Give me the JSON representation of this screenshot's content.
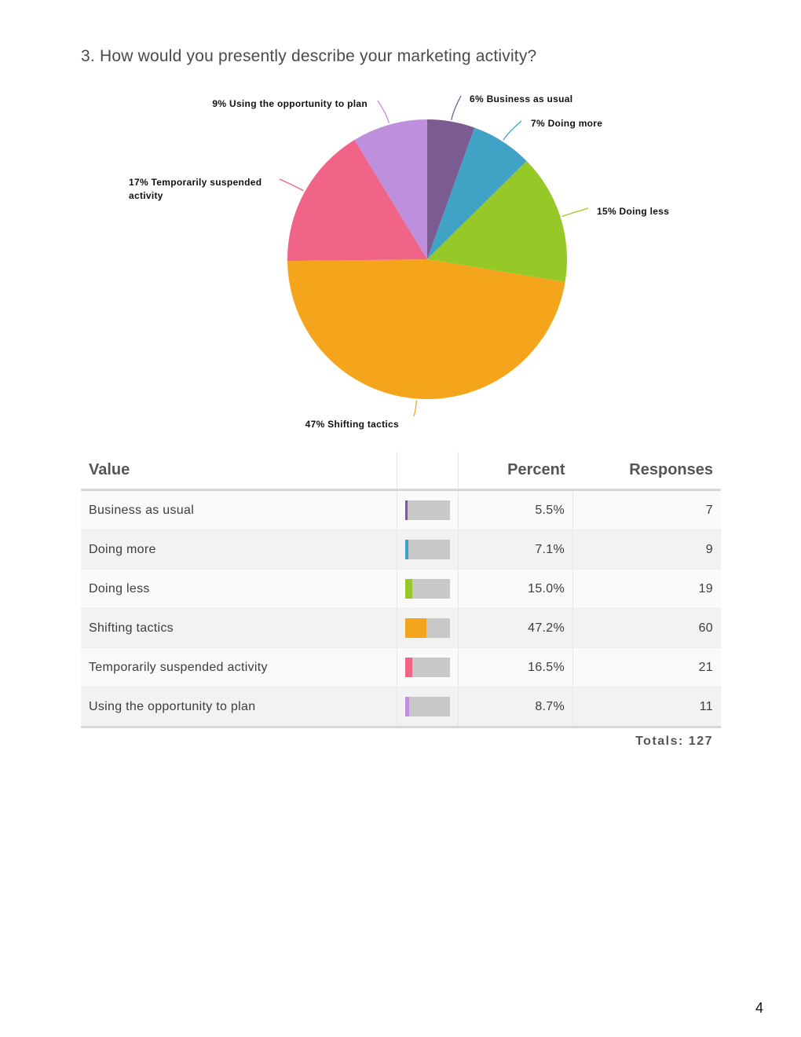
{
  "question": "3. How would you presently describe your marketing activity?",
  "chart_data": {
    "type": "pie",
    "title": "3. How would you presently describe your marketing activity?",
    "slices": [
      {
        "label": "Business as usual",
        "display_label": "6% Business as usual",
        "percent": 5.5,
        "color": "#7b5c91"
      },
      {
        "label": "Doing more",
        "display_label": "7% Doing more",
        "percent": 7.1,
        "color": "#40a2c4"
      },
      {
        "label": "Doing less",
        "display_label": "15% Doing less",
        "percent": 15.0,
        "color": "#96c928"
      },
      {
        "label": "Shifting tactics",
        "display_label": "47% Shifting tactics",
        "percent": 47.2,
        "color": "#f4a51c"
      },
      {
        "label": "Temporarily suspended activity",
        "display_label_lines": [
          "17% Temporarily suspended",
          "activity"
        ],
        "percent": 16.5,
        "color": "#f06488"
      },
      {
        "label": "Using the opportunity to plan",
        "display_label": "9% Using the opportunity to plan",
        "percent": 8.7,
        "color": "#be8fdc"
      }
    ]
  },
  "table": {
    "headers": {
      "value": "Value",
      "percent": "Percent",
      "responses": "Responses"
    },
    "rows": [
      {
        "value": "Business as usual",
        "percent": "5.5%",
        "fraction": 0.055,
        "responses": "7",
        "color": "#7b5c91"
      },
      {
        "value": "Doing more",
        "percent": "7.1%",
        "fraction": 0.071,
        "responses": "9",
        "color": "#40a2c4"
      },
      {
        "value": "Doing less",
        "percent": "15.0%",
        "fraction": 0.15,
        "responses": "19",
        "color": "#96c928"
      },
      {
        "value": "Shifting tactics",
        "percent": "47.2%",
        "fraction": 0.472,
        "responses": "60",
        "color": "#f4a51c"
      },
      {
        "value": "Temporarily suspended activity",
        "percent": "16.5%",
        "fraction": 0.165,
        "responses": "21",
        "color": "#f06488"
      },
      {
        "value": "Using the opportunity to plan",
        "percent": "8.7%",
        "fraction": 0.087,
        "responses": "11",
        "color": "#be8fdc"
      }
    ],
    "totals": "Totals: 127"
  },
  "page_number": "4"
}
